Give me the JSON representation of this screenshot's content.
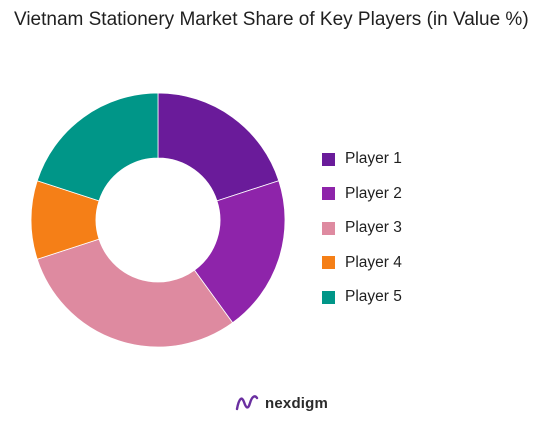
{
  "chart_data": {
    "type": "pie",
    "variant": "donut",
    "title": "Vietnam Stationery Market Share of Key Players (in Value %)",
    "categories": [
      "Player 1",
      "Player 2",
      "Player 3",
      "Player 4",
      "Player 5"
    ],
    "values": [
      20,
      20,
      30,
      10,
      20
    ],
    "colors": [
      "#6a1b9a",
      "#8e24aa",
      "#de8aa0",
      "#f57f17",
      "#009688"
    ],
    "legend_position": "right"
  },
  "brand": {
    "name": "nexdigm",
    "icon": "nexdigm-logo-icon",
    "color": "#6a2fa0"
  }
}
